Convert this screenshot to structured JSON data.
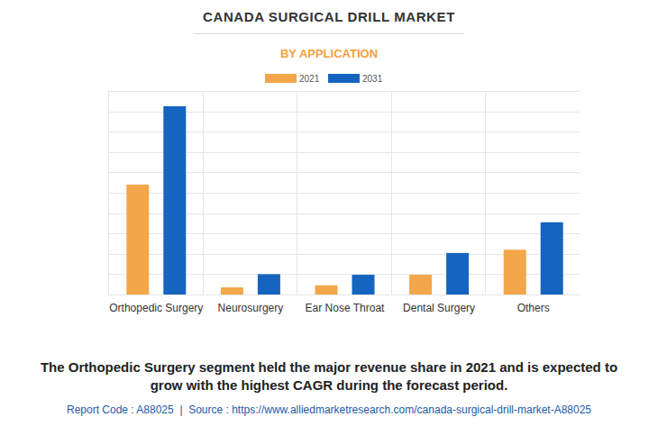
{
  "chart_data": {
    "type": "bar",
    "title": "CANADA SURGICAL DRILL MARKET",
    "subtitle": "BY APPLICATION",
    "categories": [
      "Orthopedic Surgery",
      "Neurosurgery",
      "Ear Nose Throat",
      "Dental Surgery",
      "Others"
    ],
    "series": [
      {
        "name": "2021",
        "color": "#f4a64a",
        "values": [
          5.4,
          0.35,
          0.45,
          0.97,
          2.2
        ]
      },
      {
        "name": "2031",
        "color": "#1565c0",
        "values": [
          9.25,
          1.0,
          0.97,
          2.04,
          3.55
        ]
      }
    ],
    "ylim": [
      0,
      10
    ],
    "yticks": [
      0,
      1,
      2,
      3,
      4,
      5,
      6,
      7,
      8,
      9,
      10
    ],
    "grid": true,
    "legend": "top",
    "tick_labels": false,
    "annotations": [
      "The Orthopedic Surgery segment held the major revenue share in 2021 and is expected to",
      "grow with the highest CAGR during the forecast period."
    ],
    "source": "Report Code : A88025  |  Source : https://www.alliedmarketresearch.com/canada-surgical-drill-market-A88025"
  }
}
